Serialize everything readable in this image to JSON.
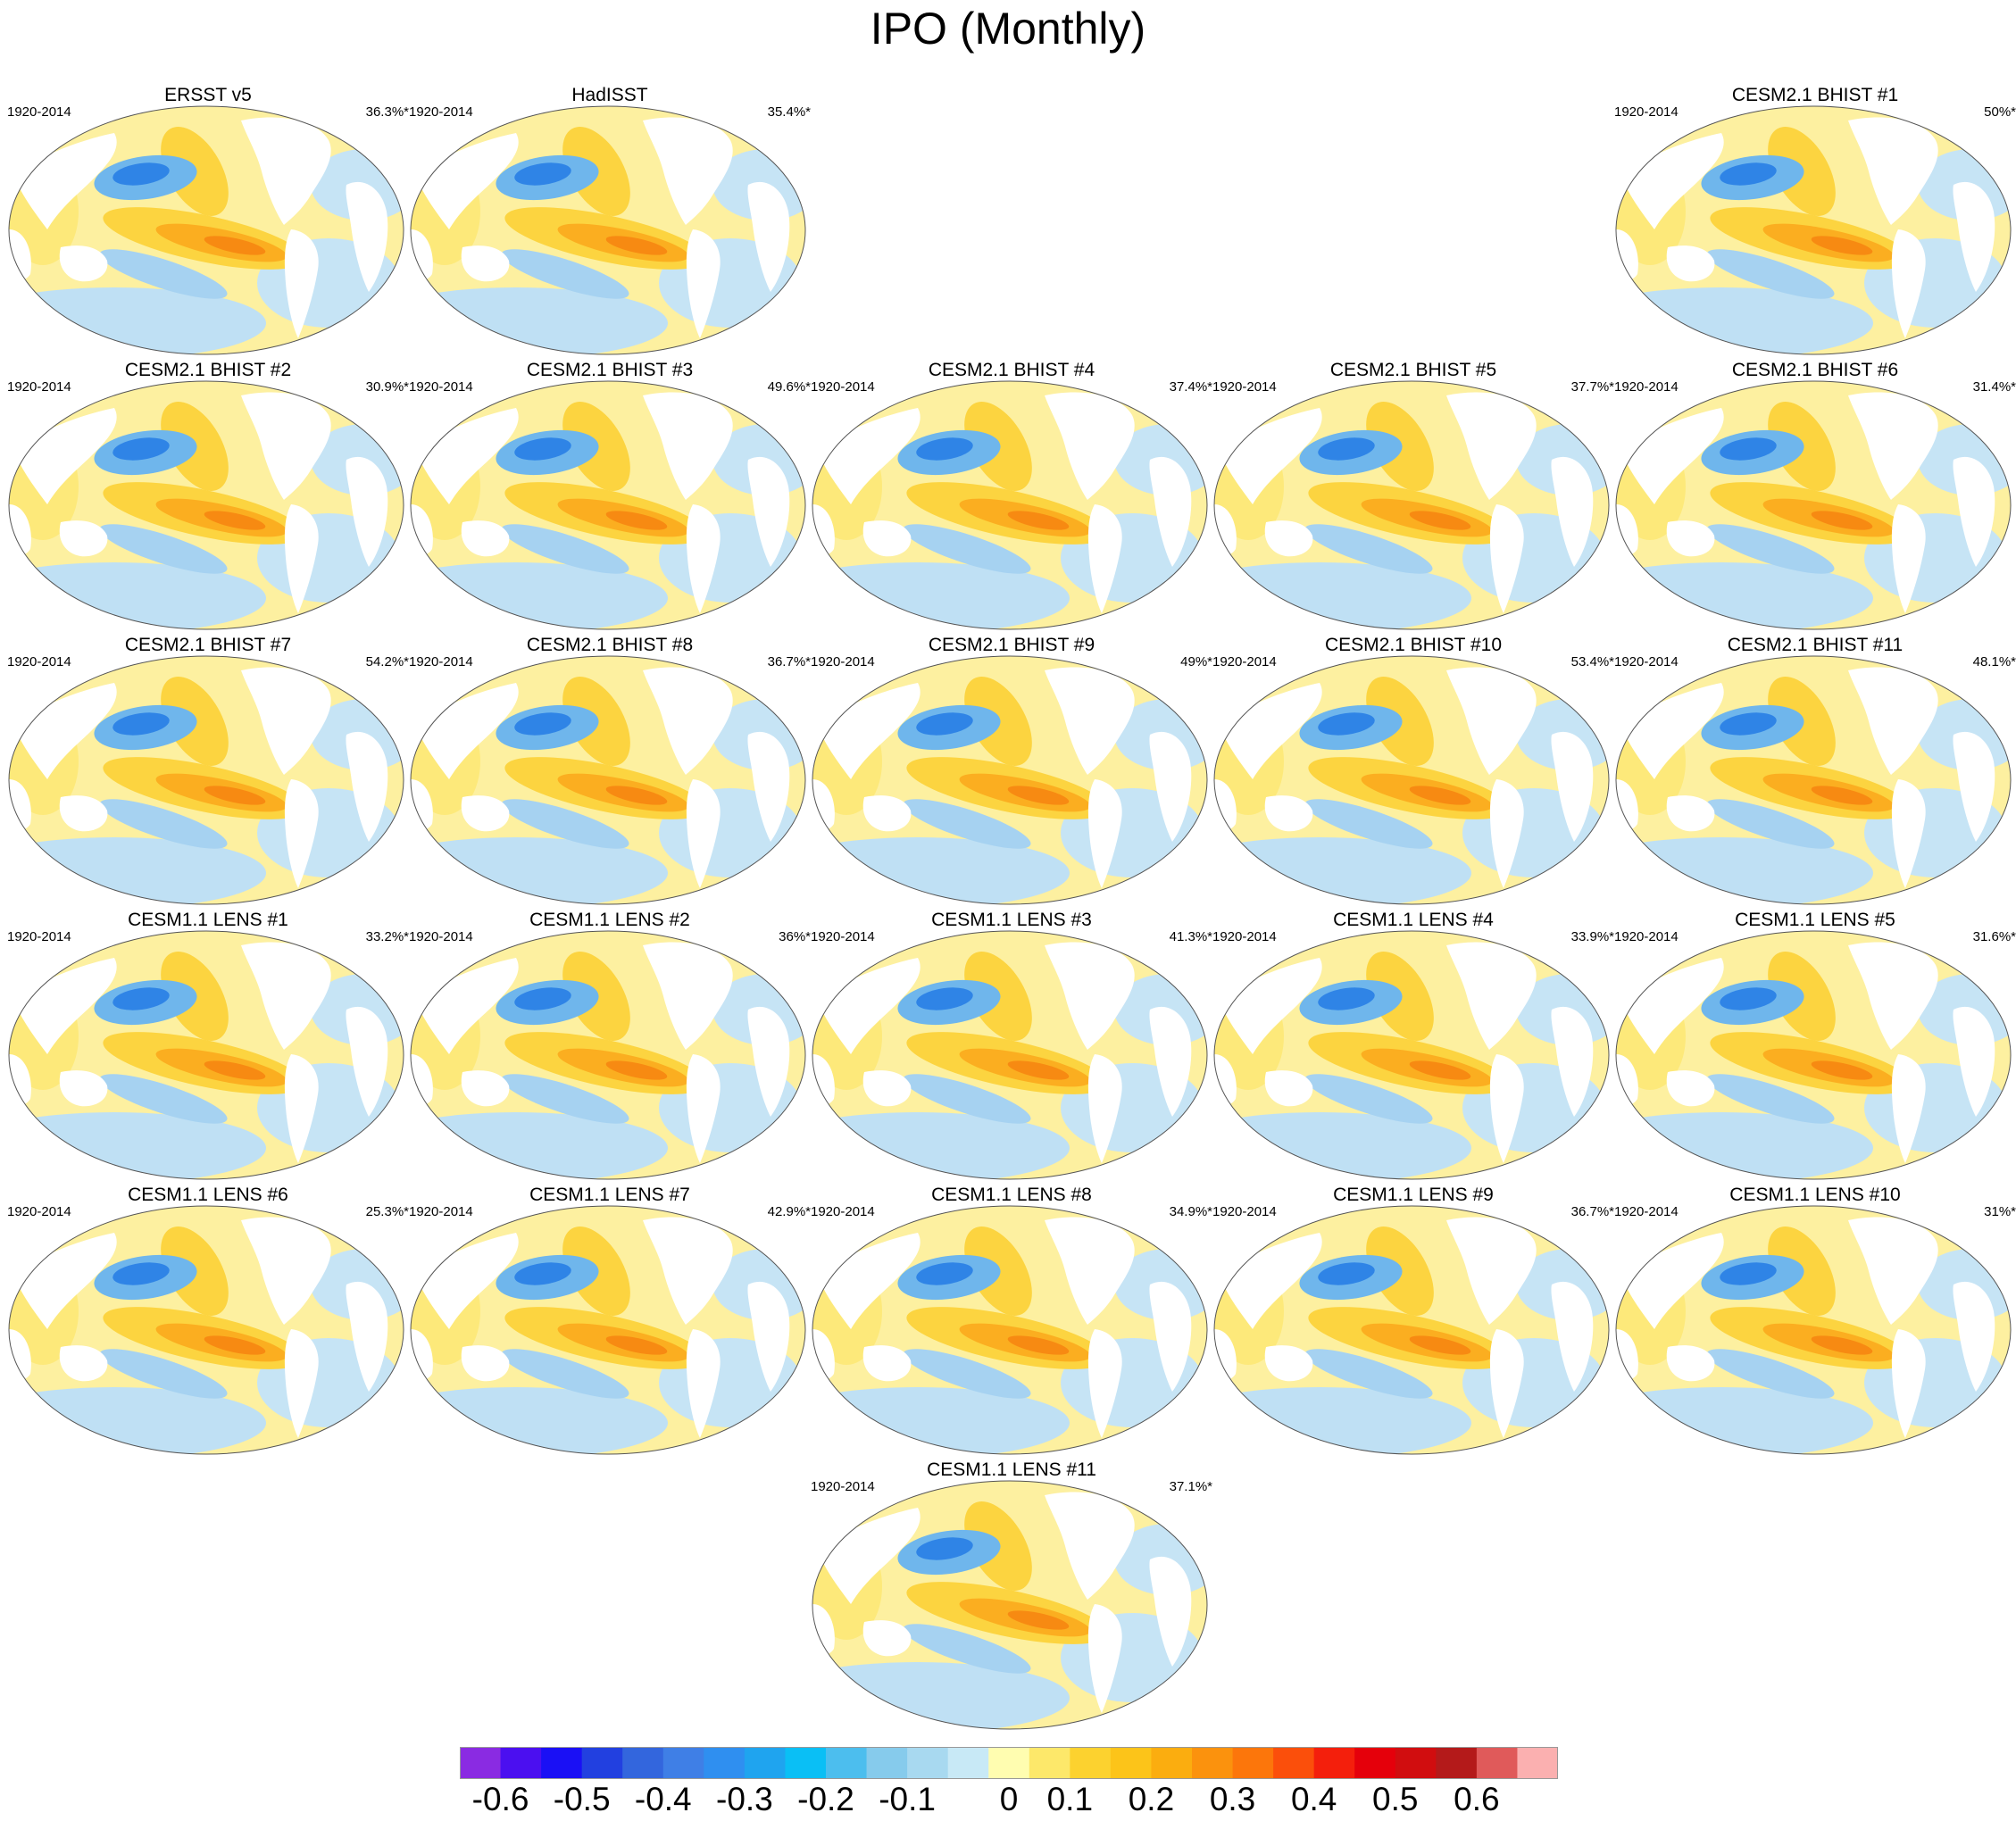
{
  "title": "IPO (Monthly)",
  "period": "1920-2014",
  "panels": [
    {
      "row": 0,
      "col": 0,
      "title": "ERSST v5",
      "pct": "36.3%*"
    },
    {
      "row": 0,
      "col": 1,
      "title": "HadISST",
      "pct": "35.4%*"
    },
    {
      "row": 0,
      "col": 4,
      "title": "CESM2.1 BHIST #1",
      "pct": "50%*"
    },
    {
      "row": 1,
      "col": 0,
      "title": "CESM2.1 BHIST #2",
      "pct": "30.9%*"
    },
    {
      "row": 1,
      "col": 1,
      "title": "CESM2.1 BHIST #3",
      "pct": "49.6%*"
    },
    {
      "row": 1,
      "col": 2,
      "title": "CESM2.1 BHIST #4",
      "pct": "37.4%*"
    },
    {
      "row": 1,
      "col": 3,
      "title": "CESM2.1 BHIST #5",
      "pct": "37.7%*"
    },
    {
      "row": 1,
      "col": 4,
      "title": "CESM2.1 BHIST #6",
      "pct": "31.4%*"
    },
    {
      "row": 2,
      "col": 0,
      "title": "CESM2.1 BHIST #7",
      "pct": "54.2%*"
    },
    {
      "row": 2,
      "col": 1,
      "title": "CESM2.1 BHIST #8",
      "pct": "36.7%*"
    },
    {
      "row": 2,
      "col": 2,
      "title": "CESM2.1 BHIST #9",
      "pct": "49%*"
    },
    {
      "row": 2,
      "col": 3,
      "title": "CESM2.1 BHIST #10",
      "pct": "53.4%*"
    },
    {
      "row": 2,
      "col": 4,
      "title": "CESM2.1 BHIST #11",
      "pct": "48.1%*"
    },
    {
      "row": 3,
      "col": 0,
      "title": "CESM1.1 LENS #1",
      "pct": "33.2%*"
    },
    {
      "row": 3,
      "col": 1,
      "title": "CESM1.1 LENS #2",
      "pct": "36%*"
    },
    {
      "row": 3,
      "col": 2,
      "title": "CESM1.1 LENS #3",
      "pct": "41.3%*"
    },
    {
      "row": 3,
      "col": 3,
      "title": "CESM1.1 LENS #4",
      "pct": "33.9%*"
    },
    {
      "row": 3,
      "col": 4,
      "title": "CESM1.1 LENS #5",
      "pct": "31.6%*"
    },
    {
      "row": 4,
      "col": 0,
      "title": "CESM1.1 LENS #6",
      "pct": "25.3%*"
    },
    {
      "row": 4,
      "col": 1,
      "title": "CESM1.1 LENS #7",
      "pct": "42.9%*"
    },
    {
      "row": 4,
      "col": 2,
      "title": "CESM1.1 LENS #8",
      "pct": "34.9%*"
    },
    {
      "row": 4,
      "col": 3,
      "title": "CESM1.1 LENS #9",
      "pct": "36.7%*"
    },
    {
      "row": 4,
      "col": 4,
      "title": "CESM1.1 LENS #10",
      "pct": "31%*"
    },
    {
      "row": 5,
      "col": 2,
      "title": "CESM1.1 LENS #11",
      "pct": "37.1%*"
    }
  ],
  "colorbar": {
    "colors": [
      "#8a2be2",
      "#4b0ff0",
      "#1a10f5",
      "#2240e0",
      "#3366dd",
      "#3f7fe6",
      "#2f8ff0",
      "#1fa4ef",
      "#0abff5",
      "#4cbeee",
      "#86cbec",
      "#a8d9f0",
      "#c8e9f6",
      "#fffdb0",
      "#fde86a",
      "#fcd22f",
      "#fcc419",
      "#fbad0f",
      "#fb920d",
      "#fc760b",
      "#fb4f0b",
      "#f41f0c",
      "#e5000b",
      "#d10d0f",
      "#b41a1a",
      "#e05a5a",
      "#fbb0b0"
    ],
    "labels": [
      "-0.6",
      "-0.5",
      "-0.4",
      "-0.3",
      "-0.2",
      "-0.1",
      "0",
      "0.1",
      "0.2",
      "0.3",
      "0.4",
      "0.5",
      "0.6"
    ]
  }
}
